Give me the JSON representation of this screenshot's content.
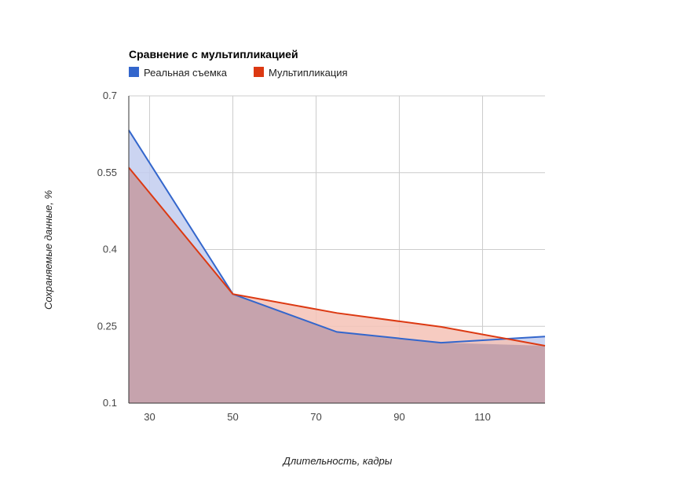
{
  "chart_data": {
    "type": "area",
    "title": "Сравнение с мультипликацией",
    "xlabel": "Длительность, кадры",
    "ylabel": "Сохраняемые данные, %",
    "xlim": [
      25,
      125
    ],
    "ylim": [
      0.1,
      0.7
    ],
    "x_ticks": [
      "30",
      "50",
      "70",
      "90",
      "110"
    ],
    "y_ticks": [
      "0.7",
      "0.55",
      "0.4",
      "0.25",
      "0.1"
    ],
    "grid": true,
    "legend_position": "top-left",
    "x": [
      25,
      50,
      75,
      100,
      125
    ],
    "series": [
      {
        "name": "Реальная съемка",
        "color": "#3366cc",
        "fill": "#c2cdee",
        "values": [
          0.633,
          0.313,
          0.239,
          0.218,
          0.23
        ]
      },
      {
        "name": "Мультипликация",
        "color": "#dc3912",
        "fill": "#f5c2b6",
        "values": [
          0.56,
          0.313,
          0.276,
          0.249,
          0.212
        ]
      }
    ]
  }
}
